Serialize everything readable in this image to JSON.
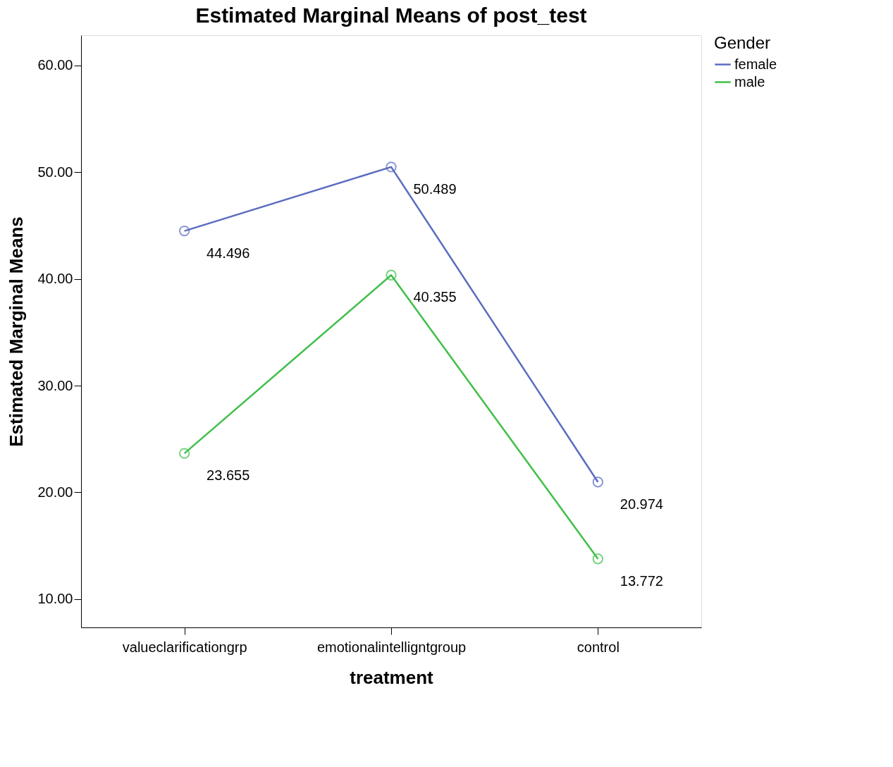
{
  "chart_data": {
    "type": "line",
    "title": "Estimated Marginal Means of post_test",
    "xlabel": "treatment",
    "ylabel": "Estimated Marginal Means",
    "legend_title": "Gender",
    "categories": [
      "valueclarificationgrp",
      "emotionalintelligntgroup",
      "control"
    ],
    "series": [
      {
        "name": "female",
        "color": "#5b6cc0",
        "values": [
          44.496,
          50.489,
          20.974
        ]
      },
      {
        "name": "male",
        "color": "#3fbf4a",
        "values": [
          23.655,
          40.355,
          13.772
        ]
      }
    ],
    "ylim": [
      7.35,
      62.83
    ],
    "yticks": [
      {
        "value": 10,
        "label": "10.00"
      },
      {
        "value": 20,
        "label": "20.00"
      },
      {
        "value": 30,
        "label": "30.00"
      },
      {
        "value": 40,
        "label": "40.00"
      },
      {
        "value": 50,
        "label": "50.00"
      },
      {
        "value": 60,
        "label": "60.00"
      }
    ],
    "data_labels": true,
    "grid": false,
    "legend": "top right",
    "marker": "circle",
    "line_style": "solid"
  }
}
